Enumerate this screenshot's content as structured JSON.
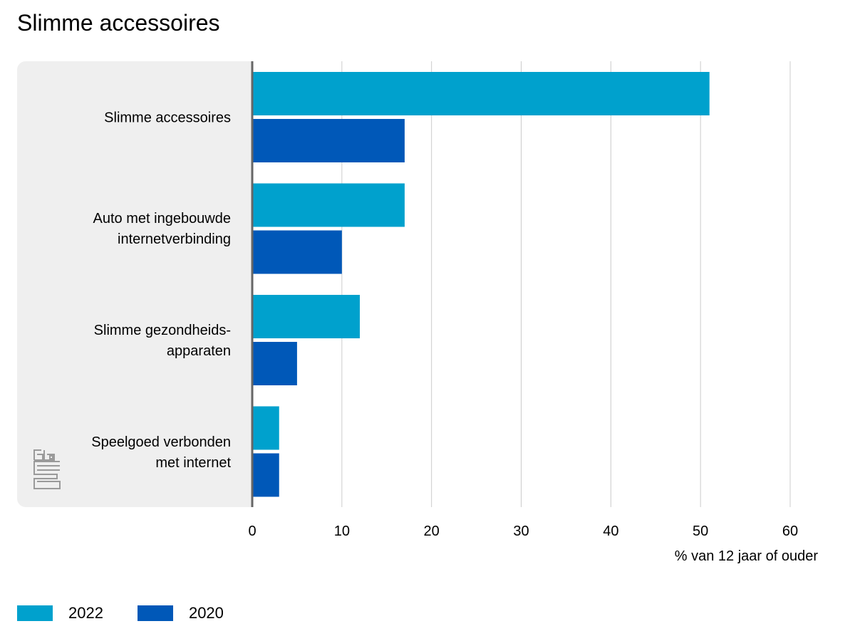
{
  "page": {
    "title": "Slimme accessoires"
  },
  "chart_data": {
    "type": "bar",
    "orientation": "horizontal",
    "title": "Slimme accessoires",
    "categories": [
      "Slimme accessoires",
      "Auto met ingebouwde\ninternetverbinding",
      "Slimme gezondheids-\napparaten",
      "Speelgoed verbonden\nmet internet"
    ],
    "series": [
      {
        "name": "2022",
        "color": "#00a1cd",
        "values": [
          51,
          17,
          12,
          3
        ]
      },
      {
        "name": "2020",
        "color": "#0058b8",
        "values": [
          17,
          10,
          5,
          3
        ]
      }
    ],
    "xlabel": "% van 12 jaar of ouder",
    "ylabel": "",
    "xlim": [
      0,
      60
    ],
    "xticks": [
      "0",
      "10",
      "20",
      "30",
      "40",
      "50",
      "60"
    ],
    "grid": true,
    "legend_position": "bottom-left"
  },
  "logo": {
    "icon": "cbs-logo-icon"
  },
  "colors": {
    "panel": "#efefef",
    "grid": "#cccccc",
    "axis": "#666666"
  }
}
